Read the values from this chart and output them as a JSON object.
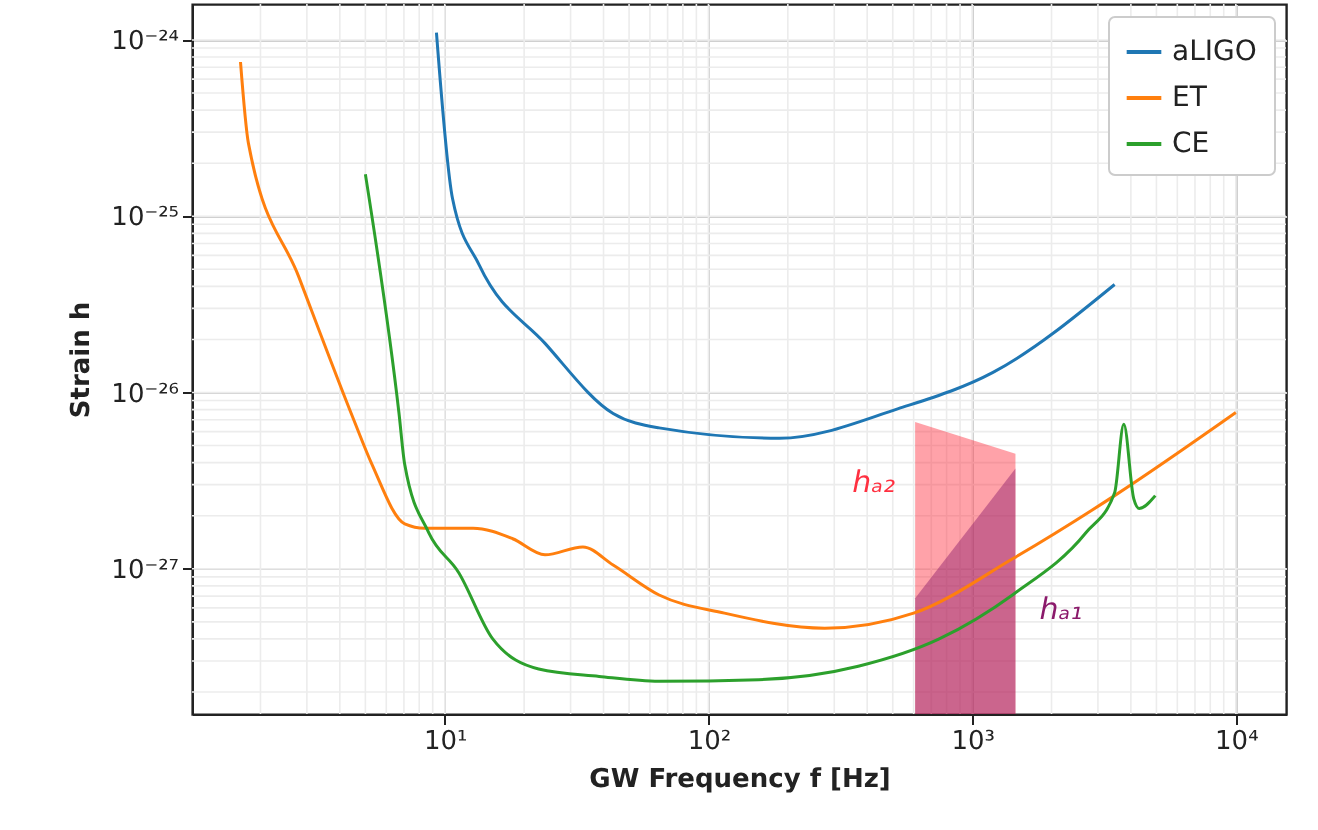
{
  "chart_data": {
    "type": "line",
    "xlabel": "GW Frequency f [Hz]",
    "ylabel": "Strain h",
    "log": "xy",
    "grid": true,
    "legend": "top right",
    "xlim": [
      1.1,
      15500
    ],
    "ylim": [
      1.5e-28,
      1.6e-24
    ],
    "xticks": [
      {
        "value": 10,
        "label": "10¹"
      },
      {
        "value": 100,
        "label": "10²"
      },
      {
        "value": 1000,
        "label": "10³"
      },
      {
        "value": 10000,
        "label": "10⁴"
      }
    ],
    "yticks": [
      {
        "value": 1e-27,
        "label": "10⁻²⁷"
      },
      {
        "value": 1e-26,
        "label": "10⁻²⁶"
      },
      {
        "value": 1e-25,
        "label": "10⁻²⁵"
      },
      {
        "value": 1e-24,
        "label": "10⁻²⁴"
      }
    ],
    "series": [
      {
        "name": "aLIGO",
        "color": "#1f77b4",
        "x": [
          9.3,
          10.7,
          13.5,
          24,
          43.5,
          65,
          186,
          525,
          1200,
          3470
        ],
        "values": [
          1.1e-24,
          1.26e-25,
          5.3e-26,
          1.9e-26,
          7.6e-27,
          6.3e-27,
          5.5e-27,
          8.1e-27,
          1.3e-26,
          4.1e-26
        ]
      },
      {
        "name": "ET",
        "color": "#ff7f0e",
        "x": [
          1.68,
          1.8,
          2.8,
          4.5,
          5.3,
          7.05,
          8.4,
          12.8,
          18.1,
          24,
          33.4,
          43.5,
          65,
          115,
          276,
          600,
          1440,
          3470,
          10000
        ],
        "values": [
          7.5e-25,
          2.6e-25,
          4.5e-26,
          7.1e-27,
          3.9e-27,
          1.8e-27,
          1.7e-27,
          1.7e-27,
          1.48e-27,
          1.2e-27,
          1.33e-27,
          1.05e-27,
          7.1e-28,
          5.6e-28,
          4.6e-28,
          5.6e-28,
          1.15e-27,
          2.6e-27,
          7.7e-27
        ]
      },
      {
        "name": "CE",
        "color": "#2ca02c",
        "x": [
          5.0,
          6.7,
          7.05,
          8.7,
          11.3,
          15.2,
          22.7,
          38.5,
          65,
          155,
          370,
          750,
          1440,
          2700,
          3470,
          3760,
          4100,
          4300,
          4950
        ],
        "values": [
          1.73e-25,
          7.7e-27,
          3.9e-27,
          1.6e-27,
          9.5e-28,
          4e-28,
          2.7e-28,
          2.45e-28,
          2.3e-28,
          2.35e-28,
          2.8e-28,
          4e-28,
          7.2e-28,
          1.6e-27,
          2.7e-27,
          6.6e-27,
          2.5e-27,
          2.2e-27,
          2.6e-27
        ]
      },
      {
        "name": "hₐ₂",
        "type": "area",
        "color": "#ff3040",
        "x": [
          608,
          1460
        ],
        "values": [
          6.8e-27,
          4.5e-27
        ]
      },
      {
        "name": "hₐ₁",
        "type": "area",
        "color": "#8b1a6b",
        "x": [
          608,
          1460
        ],
        "values": [
          6.8e-28,
          3.7e-27
        ]
      }
    ]
  }
}
